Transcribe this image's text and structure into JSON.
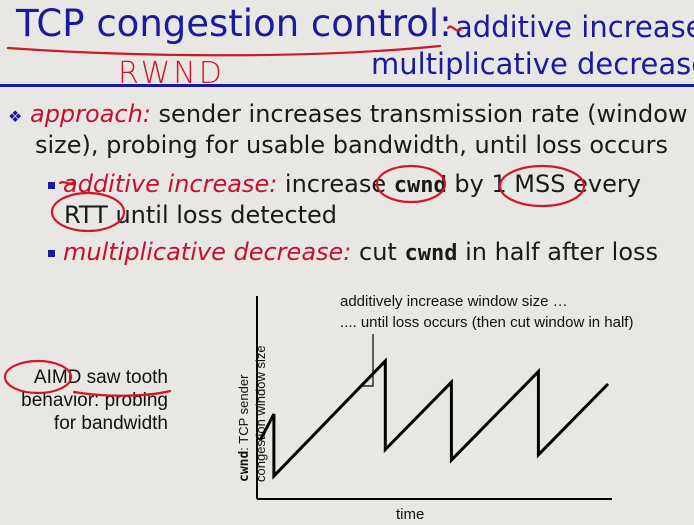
{
  "title": {
    "main": "TCP congestion control:",
    "sub1": "additive increase",
    "sub2": "multiplicative decrease"
  },
  "handwritten_note": "RWND",
  "bullets": {
    "approach_label": "approach:",
    "approach_line1": " sender increases transmission rate (window",
    "approach_line2": "size), probing for usable bandwidth, until loss occurs",
    "additive_label": "additive increase:",
    "additive_pre": " increase ",
    "additive_code": "cwnd",
    "additive_mid": " by ",
    "additive_unit": "1 MSS",
    "additive_post": " every",
    "additive_line2_rtt": "RTT",
    "additive_line2_rest": " until loss detected",
    "mult_label": "multiplicative decrease:",
    "mult_pre": " cut ",
    "mult_code": "cwnd",
    "mult_post": "  in half after loss"
  },
  "side_label": {
    "line1": "AIMD saw tooth",
    "line2": "behavior: probing",
    "line3": "for bandwidth"
  },
  "chart_data": {
    "type": "line",
    "xlabel": "time",
    "ylabel_code": "cwnd",
    "ylabel_line1": ": TCP sender",
    "ylabel_line2": "congestion window size",
    "annotation_line1": "additively increase window size …",
    "annotation_line2": ".... until loss occurs (then cut window in half)",
    "series": [
      {
        "values": [
          {
            "t": 0,
            "w": 0.55
          },
          {
            "t": 0.04,
            "w": 0.7
          },
          {
            "t": 0.04,
            "w": 0.35
          },
          {
            "t": 0.36,
            "w": 1.0
          },
          {
            "t": 0.36,
            "w": 0.5
          },
          {
            "t": 0.55,
            "w": 0.88
          },
          {
            "t": 0.55,
            "w": 0.44
          },
          {
            "t": 0.8,
            "w": 0.94
          },
          {
            "t": 0.8,
            "w": 0.47
          },
          {
            "t": 1.0,
            "w": 0.87
          }
        ]
      }
    ],
    "colors": {
      "line": "#000000",
      "axis": "#000000"
    }
  },
  "colors": {
    "title": "#1b1a9e",
    "emphasis": "#c8102e",
    "ink_annotations": "#d0182a",
    "background": "#e9e7e4"
  }
}
